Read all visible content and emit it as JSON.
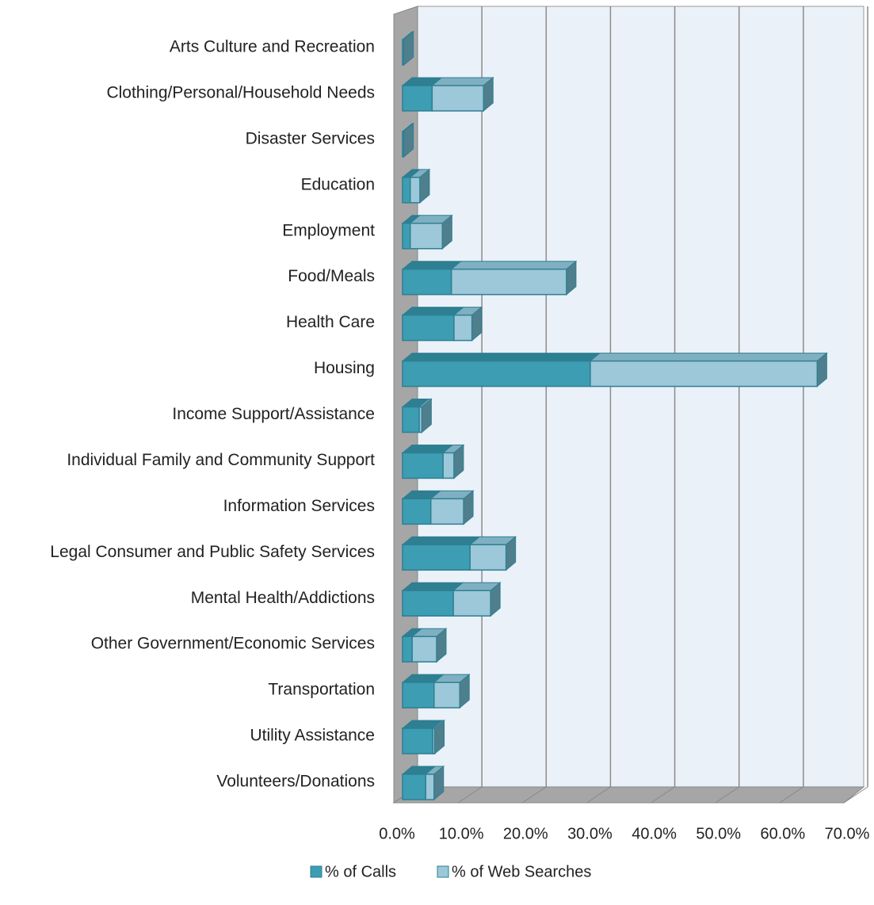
{
  "chart_data": {
    "type": "bar",
    "orientation": "horizontal",
    "stacked": true,
    "three_d": true,
    "categories": [
      "Arts  Culture and Recreation",
      "Clothing/Personal/Household Needs",
      "Disaster Services",
      "Education",
      "Employment",
      "Food/Meals",
      "Health Care",
      "Housing",
      "Income Support/Assistance",
      "Individual  Family and Community Support",
      "Information Services",
      "Legal  Consumer and Public Safety Services",
      "Mental Health/Addictions",
      "Other Government/Economic Services",
      "Transportation",
      "Utility Assistance",
      "Volunteers/Donations"
    ],
    "series": [
      {
        "name": "% of Calls",
        "color": "#3d9db3",
        "values": [
          0.2,
          4.6,
          0.2,
          1.2,
          1.2,
          7.6,
          8.0,
          29.2,
          2.6,
          6.3,
          4.4,
          10.5,
          7.9,
          1.5,
          4.9,
          4.7,
          3.6
        ]
      },
      {
        "name": "% of Web Searches",
        "color": "#9cc8d9",
        "values": [
          0,
          8.0,
          0,
          1.5,
          5.0,
          17.9,
          2.8,
          35.3,
          0.4,
          1.7,
          5.1,
          5.6,
          5.8,
          3.8,
          4.0,
          0.3,
          1.3
        ]
      }
    ],
    "xlim": [
      0,
      70
    ],
    "xticks": [
      {
        "value": 0,
        "label": "0.0%"
      },
      {
        "value": 10,
        "label": "10.0%"
      },
      {
        "value": 20,
        "label": "20.0%"
      },
      {
        "value": 30,
        "label": "30.0%"
      },
      {
        "value": 40,
        "label": "40.0%"
      },
      {
        "value": 50,
        "label": "50.0%"
      },
      {
        "value": 60,
        "label": "60.0%"
      },
      {
        "value": 70,
        "label": "70.0%"
      }
    ],
    "grid": true,
    "legend": "bottom"
  }
}
